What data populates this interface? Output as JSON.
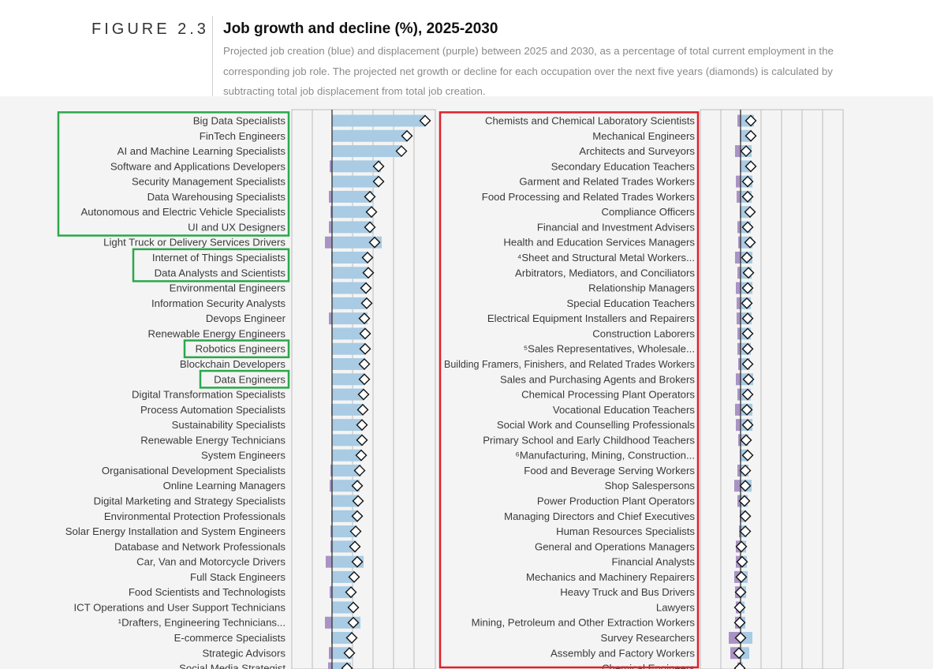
{
  "figure_label": "FIGURE 2.3",
  "title": "Job growth and decline (%), 2025-2030",
  "subtitle": "Projected job creation (blue) and displacement (purple) between 2025 and 2030, as a percentage of total current employment in the corresponding job role. The projected net growth or decline for each occupation over the next five years (diamonds) is calculated by subtracting total job displacement from total job creation.",
  "colors": {
    "creation": "#a9cbe3",
    "displacement": "#a993c4",
    "green_box": "#2aa84a",
    "red_box": "#e0202a"
  },
  "chart_data": [
    {
      "type": "bar",
      "scale_note": "growth vs decline percent per occupation",
      "categories": [
        "Big Data Specialists",
        "FinTech Engineers",
        "AI and Machine Learning Specialists",
        "Software and Applications Developers",
        "Security Management Specialists",
        "Data Warehousing Specialists",
        "Autonomous and Electric Vehicle Specialists",
        "UI and UX Designers",
        "Light Truck or Delivery Services Drivers",
        "Internet of Things Specialists",
        "Data Analysts and Scientists",
        "Environmental Engineers",
        "Information Security Analysts",
        "Devops Engineer",
        "Renewable Energy Engineers",
        "Robotics Engineers",
        "Blockchain Developers",
        "Data Engineers",
        "Digital Transformation Specialists",
        "Process Automation Specialists",
        "Sustainability Specialists",
        "Renewable Energy Technicians",
        "System Engineers",
        "Organisational Development Specialists",
        "Online Learning Managers",
        "Digital Marketing and Strategy Specialists",
        "Environmental Protection Professionals",
        "Solar Energy Installation and System Engineers",
        "Database and Network Professionals",
        "Car, Van and Motorcycle Drivers",
        "Full Stack Engineers",
        "Food Scientists and Technologists",
        "ICT Operations and User Support Technicians",
        "¹Drafters, Engineering Technicians...",
        "E-commerce Specialists",
        "Strategic Advisors",
        "Social Media Strategist"
      ],
      "series": [
        {
          "name": "creation",
          "values": [
            118,
            95,
            88,
            62,
            59,
            52,
            52,
            52,
            63,
            46,
            46,
            44,
            44,
            45,
            42,
            42,
            41,
            41,
            40,
            40,
            38,
            38,
            37,
            37,
            35,
            34,
            33,
            32,
            31,
            40,
            28,
            27,
            27,
            36,
            26,
            26,
            24
          ]
        },
        {
          "name": "displacement",
          "values": [
            0,
            0,
            0,
            -3,
            0,
            -4,
            -2,
            -4,
            -9,
            -1,
            0,
            -1,
            0,
            -4,
            0,
            0,
            0,
            0,
            0,
            -1,
            0,
            0,
            0,
            -2,
            -3,
            -1,
            -1,
            -2,
            -2,
            -8,
            0,
            -3,
            0,
            -9,
            -1,
            -4,
            -5
          ]
        },
        {
          "name": "net",
          "values": [
            118,
            95,
            88,
            59,
            59,
            48,
            50,
            48,
            54,
            45,
            46,
            43,
            44,
            41,
            42,
            42,
            41,
            41,
            40,
            39,
            38,
            38,
            37,
            35,
            32,
            33,
            32,
            30,
            29,
            32,
            28,
            24,
            27,
            27,
            25,
            22,
            19
          ]
        }
      ],
      "highlight_groups": [
        [
          0,
          7
        ],
        [
          9,
          10
        ],
        [
          15,
          15
        ],
        [
          17,
          17
        ]
      ]
    },
    {
      "type": "bar",
      "scale_note": "growth vs decline percent per occupation",
      "categories": [
        "Chemists and Chemical Laboratory Scientists",
        "Mechanical Engineers",
        "Architects and Surveyors",
        "Secondary Education Teachers",
        "Garment and Related Trades Workers",
        "Food Processing and Related Trades Workers",
        "Compliance Officers",
        "Financial and Investment Advisers",
        "Health and Education Services Managers",
        "⁴Sheet and Structural Metal Workers...",
        "Arbitrators, Mediators, and Conciliators",
        "Relationship Managers",
        "Special Education Teachers",
        "Electrical Equipment Installers and Repairers",
        "Construction Laborers",
        "⁵Sales Representatives, Wholesale...",
        "Building Framers, Finishers, and Related Trades Workers",
        "Sales and Purchasing Agents and Brokers",
        "Chemical Processing Plant Operators",
        "Vocational Education Teachers",
        "Social Work and Counselling Professionals",
        "Primary School and Early Childhood Teachers",
        "⁶Manufacturing, Mining, Construction...",
        "Food and Beverage Serving Workers",
        "Shop Salespersons",
        "Power Production Plant Operators",
        "Managing Directors and Chief Executives",
        "Human Resources Specialists",
        "General and Operations Managers",
        "Financial Analysts",
        "Mechanics and Machinery Repairers",
        "Heavy Truck and Bus Drivers",
        "Lawyers",
        "Mining, Petroleum and Other Extraction Workers",
        "Survey Researchers",
        "Assembly and Factory Workers",
        "Chemical Engineers"
      ],
      "series": [
        {
          "name": "creation",
          "values": [
            17,
            14,
            14,
            14,
            15,
            14,
            13,
            13,
            15,
            15,
            14,
            15,
            13,
            14,
            13,
            13,
            12,
            16,
            13,
            15,
            15,
            10,
            10,
            10,
            14,
            9,
            7,
            8,
            7,
            8,
            9,
            7,
            5,
            6,
            15,
            11,
            3
          ]
        },
        {
          "name": "displacement",
          "values": [
            -4,
            -1,
            -7,
            -1,
            -6,
            -5,
            -1,
            -4,
            -3,
            -7,
            -4,
            -6,
            -5,
            -5,
            -4,
            -4,
            -3,
            -6,
            -4,
            -7,
            -6,
            -3,
            -1,
            -4,
            -8,
            -4,
            -1,
            -2,
            -6,
            -6,
            -8,
            -7,
            -6,
            -7,
            -15,
            -13,
            -4
          ]
        },
        {
          "name": "net",
          "values": [
            13,
            13,
            7,
            13,
            9,
            9,
            12,
            9,
            12,
            8,
            10,
            9,
            8,
            9,
            9,
            9,
            9,
            10,
            9,
            8,
            9,
            7,
            9,
            6,
            6,
            5,
            6,
            6,
            1,
            2,
            1,
            0,
            -1,
            -1,
            0,
            -2,
            -1
          ]
        }
      ],
      "highlight_groups": [
        [
          0,
          36
        ]
      ]
    }
  ]
}
